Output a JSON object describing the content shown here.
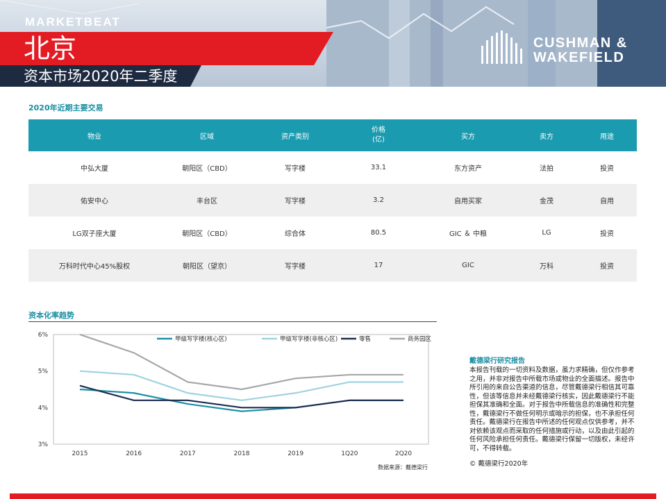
{
  "header": {
    "brand": "MARKETBEAT",
    "city": "北京",
    "subtitle": "资本市场2020年二季度",
    "logo_line1": "CUSHMAN &",
    "logo_line2": "WAKEFIELD",
    "colors": {
      "red": "#e31b23",
      "dark": "#1d2a40"
    }
  },
  "deals": {
    "title": "2020年近期主要交易",
    "headers": [
      "物业",
      "区域",
      "资产类别",
      "价格\n(亿)",
      "买方",
      "卖方",
      "用途"
    ],
    "rows": [
      [
        "中弘大厦",
        "朝阳区（CBD）",
        "写字楼",
        "33.1",
        "东方资产",
        "法拍",
        "投资"
      ],
      [
        "佑安中心",
        "丰台区",
        "写字楼",
        "3.2",
        "自用买家",
        "金茂",
        "自用"
      ],
      [
        "LG双子座大厦",
        "朝阳区（CBD）",
        "综合体",
        "80.5",
        "GIC ＆ 中粮",
        "LG",
        "投资"
      ],
      [
        "万科时代中心45%股权",
        "朝阳区（望京）",
        "写字楼",
        "17",
        "GIC",
        "万科",
        "投资"
      ]
    ]
  },
  "chart": {
    "title": "资本化率趋势",
    "source": "数据来源：戴德梁行"
  },
  "chart_data": {
    "type": "line",
    "title": "资本化率趋势",
    "x": [
      "2015",
      "2016",
      "2017",
      "2018",
      "2019",
      "1Q20",
      "2Q20"
    ],
    "ylim": [
      3,
      6
    ],
    "yticks": [
      "3%",
      "4%",
      "5%",
      "6%"
    ],
    "grid": false,
    "legend": "top",
    "series": [
      {
        "name": "甲级写字楼(核心区)",
        "color": "#1b8fa8",
        "values": [
          4.5,
          4.4,
          4.1,
          3.9,
          4.0,
          4.2,
          4.2
        ]
      },
      {
        "name": "甲级写字楼(非核心区)",
        "color": "#9fd2e0",
        "values": [
          5.0,
          4.9,
          4.4,
          4.2,
          4.4,
          4.7,
          4.7
        ]
      },
      {
        "name": "零售",
        "color": "#1d2b4c",
        "values": [
          4.6,
          4.2,
          4.2,
          4.0,
          4.0,
          4.2,
          4.2
        ]
      },
      {
        "name": "商务园区",
        "color": "#a6a6a6",
        "values": [
          6.0,
          5.5,
          4.7,
          4.5,
          4.8,
          4.9,
          4.9
        ]
      }
    ]
  },
  "disclaimer": {
    "title": "戴德梁行研究报告",
    "body": "本报告刊载的一切资料及数据，虽力求精确，但仅作参考之用，并非对报告中所载市场或物业的全面描述。报告中所引用的来自公告渠道的信息，尽管戴德梁行相信其可靠性，但该等信息并未经戴德梁行核实，因此戴德梁行不能担保其准确和全面。对于报告中所载信息的准确性和完整性，戴德梁行不做任何明示或暗示的担保，也不承担任何责任。戴德梁行在报告中所述的任何观点仅供参考，并不对依赖该观点而采取的任何措施或行动，以及由此引起的任何风险承担任何责任。戴德梁行保留一切版权，未经许可，不得转载。",
    "copyright": "© 戴德梁行2020年"
  }
}
